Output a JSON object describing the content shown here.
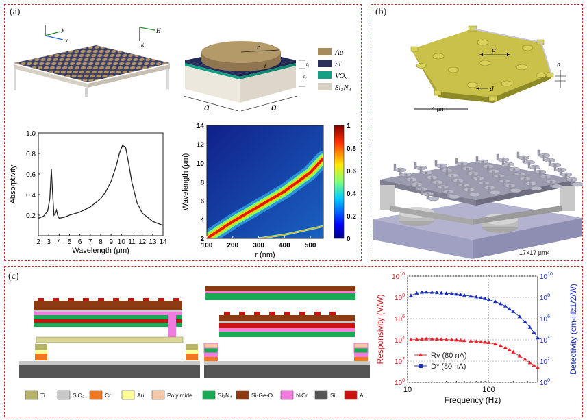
{
  "panels": {
    "a": "(a)",
    "b": "(b)",
    "c": "(c)"
  },
  "panel_a": {
    "axes_3d": {
      "y": "y",
      "x": "x",
      "h": "H",
      "k": "k"
    },
    "unit_cell": {
      "r": "r",
      "t": "t",
      "t1": "t₁",
      "t2": "t₂",
      "a1": "a",
      "a2": "a"
    },
    "materials_legend": [
      {
        "label": "Au",
        "color": "#a68b5b"
      },
      {
        "label": "Si",
        "color": "#2a2f5c"
      },
      {
        "label": "VOₓ",
        "color": "#14a085"
      },
      {
        "label": "Si₃N₄",
        "color": "#d8d2c4"
      }
    ]
  },
  "panel_b": {
    "p": "p",
    "d": "d",
    "h": "h",
    "scale_bar": "4 μm",
    "size_label": "17×17 μm²"
  },
  "panel_c": {
    "legend": [
      {
        "label": "Ti",
        "color": "#b5b46a"
      },
      {
        "label": "SiO₂",
        "color": "#c8c8c8"
      },
      {
        "label": "Cr",
        "color": "#f07820"
      },
      {
        "label": "Au",
        "color": "#ffff99"
      },
      {
        "label": "Polyimide",
        "color": "#f7c8a8"
      },
      {
        "label": "Si₃N₄",
        "color": "#1aaa55"
      },
      {
        "label": "Si-Ge-O",
        "color": "#8b3a12"
      },
      {
        "label": "NiCr",
        "color": "#f07ce0"
      },
      {
        "label": "Si",
        "color": "#555555"
      },
      {
        "label": "Al",
        "color": "#cc1111"
      }
    ]
  },
  "chart_data": [
    {
      "type": "line",
      "xlabel": "Wavelength (μm)",
      "ylabel": "Absorptivity",
      "xlim": [
        2,
        14
      ],
      "ylim": [
        0,
        1.0
      ],
      "xticks": [
        "2",
        "3",
        "4",
        "5",
        "6",
        "7",
        "8",
        "9",
        "10",
        "11",
        "12",
        "13",
        "14"
      ],
      "yticks": [
        "0.2",
        "0.4",
        "0.6",
        "0.8",
        "1.0"
      ],
      "x": [
        2.0,
        2.5,
        2.9,
        3.1,
        3.25,
        3.35,
        3.5,
        3.65,
        3.75,
        3.85,
        4.0,
        4.5,
        5,
        6,
        7,
        8,
        8.5,
        9,
        9.5,
        9.8,
        10.1,
        10.4,
        10.7,
        11,
        11.5,
        12,
        13,
        14
      ],
      "y": [
        0.17,
        0.19,
        0.24,
        0.36,
        0.65,
        0.45,
        0.2,
        0.22,
        0.25,
        0.2,
        0.17,
        0.18,
        0.2,
        0.23,
        0.28,
        0.36,
        0.43,
        0.53,
        0.68,
        0.8,
        0.88,
        0.86,
        0.7,
        0.52,
        0.32,
        0.22,
        0.14,
        0.1
      ]
    },
    {
      "type": "heatmap",
      "xlabel": "r (nm)",
      "ylabel": "Wavelength (μm)",
      "xlim": [
        100,
        550
      ],
      "ylim": [
        2,
        14
      ],
      "xticks": [
        "100",
        "200",
        "300",
        "400",
        "500"
      ],
      "yticks": [
        "2",
        "4",
        "6",
        "8",
        "10",
        "12",
        "14"
      ],
      "colorbar_ticks": [
        "0",
        "0.2",
        "0.4",
        "0.6",
        "0.8",
        "1"
      ],
      "main_band": {
        "r": [
          100,
          200,
          300,
          400,
          500,
          550
        ],
        "wavelength": [
          2.0,
          3.8,
          5.4,
          7.0,
          9.0,
          10.5
        ]
      },
      "weak_band": {
        "r": [
          300,
          400,
          500,
          550
        ],
        "wavelength": [
          2.0,
          2.4,
          3.0,
          3.3
        ]
      }
    },
    {
      "type": "line",
      "xlabel": "Frequency (Hz)",
      "ylabel": "Responsivity (V/W)",
      "y2label": "Detectivity (cm-Hz1/2/W)",
      "xscale": "log",
      "yscale": "log",
      "xlim": [
        10,
        400
      ],
      "ylim": [
        1,
        10000000000
      ],
      "xticks": [
        "10",
        "100"
      ],
      "yticks_base": "10",
      "yticks_exp": [
        "0",
        "2",
        "4",
        "6",
        "8",
        "10"
      ],
      "legend_position": "bottom-left",
      "series": [
        {
          "name": "Rv (80 nA)",
          "color": "#e8202a",
          "x": [
            11,
            13,
            15,
            17,
            20,
            23,
            26,
            30,
            35,
            40,
            45,
            50,
            60,
            70,
            80,
            90,
            100,
            120,
            140,
            160,
            180,
            200,
            240,
            280,
            320,
            360,
            400
          ],
          "y": [
            10000,
            11000,
            11500,
            12000,
            12000,
            11500,
            11000,
            10500,
            10000,
            9500,
            9000,
            8500,
            7500,
            7000,
            6500,
            6000,
            5500,
            4000,
            2800,
            1800,
            1100,
            700,
            300,
            150,
            70,
            40,
            25
          ]
        },
        {
          "name": "D* (80 nA)",
          "color": "#1a2fbf",
          "x": [
            11,
            13,
            15,
            17,
            20,
            23,
            26,
            30,
            35,
            40,
            45,
            50,
            60,
            70,
            80,
            90,
            100,
            120,
            140,
            160,
            180,
            200,
            240,
            280,
            320,
            360,
            400
          ],
          "y": [
            150000000,
            250000000,
            300000000,
            310000000,
            300000000,
            280000000,
            260000000,
            240000000,
            220000000,
            200000000,
            180000000,
            160000000,
            130000000,
            110000000,
            90000000,
            75000000,
            60000000,
            40000000,
            25000000,
            15000000,
            8000000,
            4500000,
            1500000,
            500000,
            150000,
            50000,
            15000
          ]
        }
      ]
    }
  ]
}
